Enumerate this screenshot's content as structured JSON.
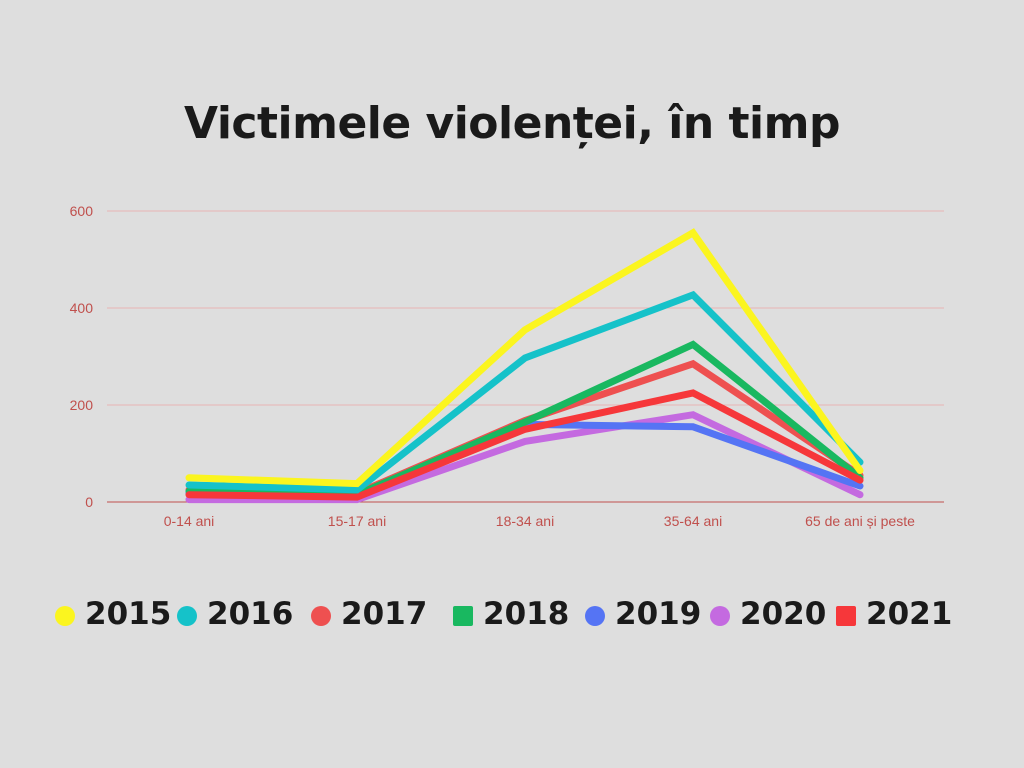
{
  "chart_data": {
    "type": "line",
    "title": "Victimele violenței,  în timp",
    "categories": [
      "0-14 ani",
      "15-17 ani",
      "18-34 ani",
      "35-64 ani",
      "65 de ani și peste"
    ],
    "ylim": [
      0,
      600
    ],
    "yticks": [
      "0",
      "200",
      "400",
      "600"
    ],
    "grid": true,
    "legend_position": "bottom",
    "series": [
      {
        "name": "2015",
        "color": "#fbf51f",
        "marker": "circle",
        "values": [
          50,
          38,
          355,
          555,
          65
        ]
      },
      {
        "name": "2016",
        "color": "#15c2c9",
        "marker": "circle",
        "values": [
          35,
          25,
          297,
          427,
          82
        ]
      },
      {
        "name": "2017",
        "color": "#ee5050",
        "marker": "circle",
        "values": [
          25,
          18,
          168,
          285,
          55
        ]
      },
      {
        "name": "2018",
        "color": "#19b860",
        "marker": "square",
        "values": [
          22,
          15,
          165,
          325,
          50
        ]
      },
      {
        "name": "2019",
        "color": "#5574f4",
        "marker": "circle",
        "values": [
          18,
          12,
          160,
          155,
          33
        ]
      },
      {
        "name": "2020",
        "color": "#c46ae0",
        "marker": "circle",
        "values": [
          5,
          5,
          125,
          180,
          15
        ]
      },
      {
        "name": "2021",
        "color": "#f6373a",
        "marker": "square",
        "values": [
          15,
          10,
          150,
          225,
          45
        ]
      }
    ]
  }
}
